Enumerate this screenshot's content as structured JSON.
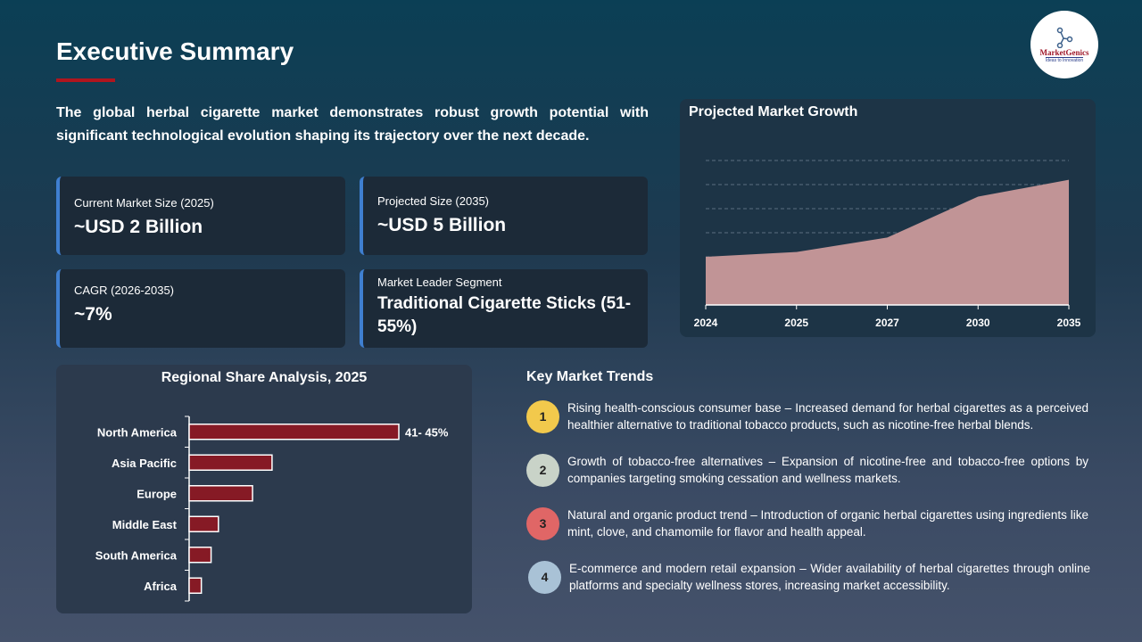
{
  "title": "Executive Summary",
  "intro": "The global herbal cigarette market demonstrates robust growth potential with significant technological evolution shaping its trajectory over the next decade.",
  "logo": {
    "name": "MarketGenics",
    "tagline": "Ideas to Innovation"
  },
  "cards": [
    {
      "label": "Current Market Size (2025)",
      "value": "~USD 2 Billion"
    },
    {
      "label": "Projected Size (2035)",
      "value": "~USD 5 Billion"
    },
    {
      "label": "CAGR (2026-2035)",
      "value": "~7%"
    },
    {
      "label": "Market Leader Segment",
      "value": "Traditional Cigarette Sticks (51-55%)"
    }
  ],
  "colors": {
    "accent": "#b0151e",
    "card_border": "#3f7fd0",
    "bar": "#861a25",
    "area": "#c19496"
  },
  "chart_data": [
    {
      "type": "area",
      "title": "Projected Market Growth",
      "categories": [
        "2024",
        "2025",
        "2027",
        "2030",
        "2035"
      ],
      "values": [
        2.0,
        2.2,
        2.8,
        4.5,
        5.2
      ],
      "ylim": [
        0,
        6
      ],
      "grid": true
    },
    {
      "type": "bar",
      "orientation": "horizontal",
      "title": "Regional Share Analysis, 2025",
      "categories": [
        "North America",
        "Asia Pacific",
        "Europe",
        "Middle East",
        "South America",
        "Africa"
      ],
      "values": [
        43,
        17,
        13,
        6,
        4.5,
        2.5
      ],
      "data_labels": [
        "41- 45%",
        "",
        "",
        "",
        "",
        ""
      ]
    }
  ],
  "trends": {
    "heading": "Key Market Trends",
    "items": [
      {
        "num": "1",
        "color": "#f2c94c",
        "text": "Rising health-conscious consumer base – Increased demand for herbal cigarettes as a perceived healthier alternative to traditional tobacco products, such as nicotine-free herbal blends."
      },
      {
        "num": "2",
        "color": "#c9d3c8",
        "text": "Growth of tobacco-free alternatives – Expansion of nicotine-free and tobacco-free options by companies targeting smoking cessation and wellness markets."
      },
      {
        "num": "3",
        "color": "#e06666",
        "text": "Natural and organic product trend – Introduction of organic herbal cigarettes using ingredients like mint, clove, and chamomile for flavor and health appeal."
      },
      {
        "num": "4",
        "color": "#a9c2d6",
        "text": "E-commerce and modern retail expansion – Wider availability of herbal cigarettes through online platforms and specialty wellness stores, increasing market accessibility."
      }
    ]
  }
}
